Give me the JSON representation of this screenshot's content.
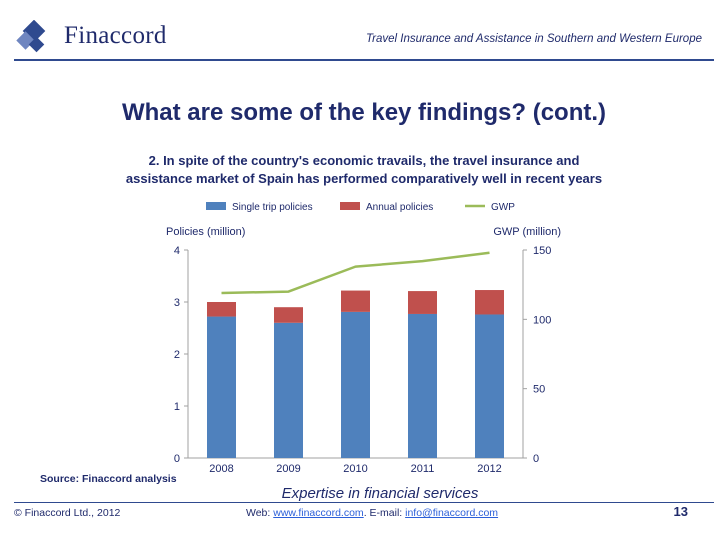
{
  "header": {
    "logo_text": "Finaccord",
    "title": "Travel Insurance and Assistance in Southern and Western Europe"
  },
  "slide": {
    "title": "What are some of the key findings? (cont.)"
  },
  "chart_data": {
    "type": "bar",
    "title_line1": "2. In spite of the country's economic travails, the travel insurance and",
    "title_line2": "assistance market of Spain has performed comparatively well in recent years",
    "categories": [
      "2008",
      "2009",
      "2010",
      "2011",
      "2012"
    ],
    "stacked": true,
    "series": [
      {
        "name": "Single  trip policies",
        "kind": "bar",
        "axis": "left",
        "color": "#4f81bd",
        "values": [
          2.72,
          2.6,
          2.81,
          2.77,
          2.76
        ]
      },
      {
        "name": "Annual policies",
        "kind": "bar",
        "axis": "left",
        "color": "#c0504d",
        "values": [
          0.28,
          0.3,
          0.41,
          0.44,
          0.47
        ]
      },
      {
        "name": "GWP",
        "kind": "line",
        "axis": "right",
        "color": "#9bbb59",
        "values": [
          119,
          120,
          138,
          142,
          148
        ]
      }
    ],
    "ylabel_left": "Policies (million)",
    "ylabel_right": "GWP (million)",
    "ylim_left": [
      0,
      4
    ],
    "ylim_right": [
      0,
      150
    ],
    "yticks_left": [
      "0",
      "1",
      "2",
      "3",
      "4"
    ],
    "yticks_right": [
      "0",
      "50",
      "100",
      "150"
    ],
    "legend_position": "top-center",
    "grid": false
  },
  "footer": {
    "source": "Source: Finaccord analysis",
    "tagline": "Expertise in financial services",
    "copyright": "© Finaccord Ltd., 2012",
    "web_label": "Web: ",
    "web_link": "www.finaccord.com",
    "email_label": ". E-mail: ",
    "email_link": "info@finaccord.com",
    "page_number": "13"
  }
}
